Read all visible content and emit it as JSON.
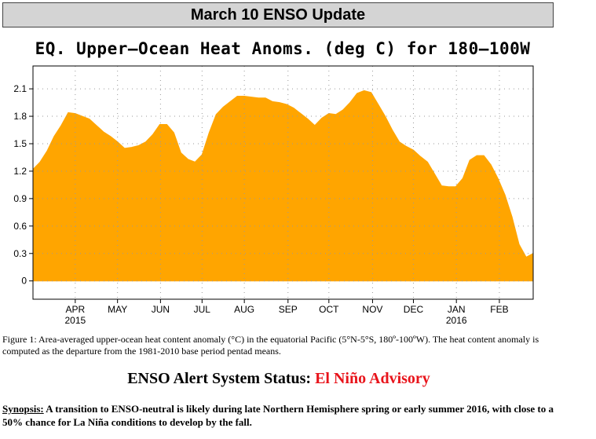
{
  "header": {
    "title": "March 10 ENSO Update"
  },
  "chart_data": {
    "type": "area",
    "title": "EQ. Upper–Ocean Heat Anoms. (deg C) for 180–100W",
    "xlabel": "",
    "ylabel": "",
    "ylim": [
      -0.2,
      2.35
    ],
    "yticks": [
      0,
      0.3,
      0.6,
      0.9,
      1.2,
      1.5,
      1.8,
      2.1
    ],
    "grid": true,
    "fill_color": "#ffa500",
    "month_ticks": [
      {
        "label": "APR",
        "year": "2015",
        "pos": 6
      },
      {
        "label": "MAY",
        "pos": 12
      },
      {
        "label": "JUN",
        "pos": 18.1
      },
      {
        "label": "JUL",
        "pos": 24
      },
      {
        "label": "AUG",
        "pos": 30
      },
      {
        "label": "SEP",
        "pos": 36.2
      },
      {
        "label": "OCT",
        "pos": 42
      },
      {
        "label": "NOV",
        "pos": 48.2
      },
      {
        "label": "DEC",
        "pos": 54
      },
      {
        "label": "JAN",
        "year": "2016",
        "pos": 60.1
      },
      {
        "label": "FEB",
        "pos": 66.2
      }
    ],
    "x": [
      0,
      1,
      2,
      3,
      4,
      5,
      6,
      7,
      8,
      9,
      10,
      11,
      12,
      13,
      14,
      15,
      16,
      17,
      18,
      19,
      20,
      21,
      22,
      23,
      24,
      25,
      26,
      27,
      28,
      29,
      30,
      31,
      32,
      33,
      34,
      35,
      36,
      37,
      38,
      39,
      40,
      41,
      42,
      43,
      44,
      45,
      46,
      47,
      48,
      49,
      50,
      51,
      52,
      53,
      54,
      55,
      56,
      57,
      58,
      59,
      60,
      61,
      62,
      63,
      64,
      65,
      66,
      67,
      68,
      69,
      70,
      71
    ],
    "values": [
      1.22,
      1.3,
      1.42,
      1.58,
      1.7,
      1.84,
      1.83,
      1.8,
      1.77,
      1.7,
      1.63,
      1.58,
      1.52,
      1.45,
      1.46,
      1.48,
      1.52,
      1.6,
      1.71,
      1.71,
      1.62,
      1.4,
      1.33,
      1.3,
      1.38,
      1.62,
      1.82,
      1.9,
      1.96,
      2.02,
      2.02,
      2.01,
      2.0,
      2.0,
      1.96,
      1.95,
      1.93,
      1.89,
      1.83,
      1.77,
      1.7,
      1.78,
      1.83,
      1.82,
      1.87,
      1.95,
      2.05,
      2.08,
      2.06,
      1.93,
      1.8,
      1.65,
      1.52,
      1.47,
      1.43,
      1.36,
      1.3,
      1.17,
      1.04,
      1.03,
      1.03,
      1.12,
      1.32,
      1.37,
      1.37,
      1.27,
      1.12,
      0.94,
      0.7,
      0.4,
      0.26,
      0.3
    ]
  },
  "caption": "Figure 1: Area-averaged upper-ocean heat content anomaly (°C) in the equatorial Pacific (5°N-5°S, 180º-100ºW). The heat content anomaly is computed as the departure from the 1981-2010 base period pentad means.",
  "status": {
    "label": "ENSO Alert System Status: ",
    "value": "El Niño Advisory",
    "value_color": "#e8141b"
  },
  "synopsis": {
    "label": "Synopsis:",
    "text": "  A transition to ENSO-neutral is likely during late Northern Hemisphere spring or early summer 2016, with close to a 50% chance for La Niña conditions to develop by the fall."
  }
}
